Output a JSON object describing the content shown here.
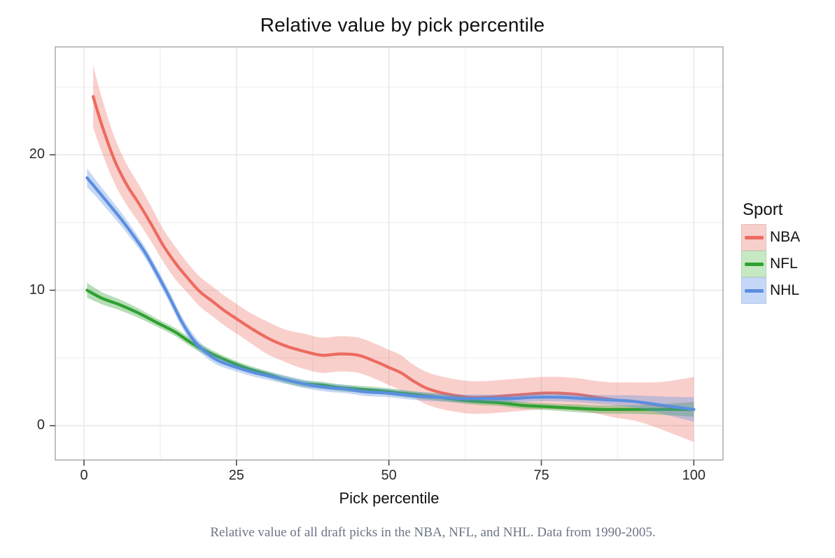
{
  "chart_data": {
    "type": "line",
    "title": "Relative value by pick percentile",
    "xlabel": "Pick percentile",
    "ylabel": "",
    "xlim": [
      -4.7,
      104.8
    ],
    "ylim": [
      -2.55,
      28.0
    ],
    "x_ticks": [
      0,
      25,
      50,
      75,
      100
    ],
    "y_ticks": [
      0,
      10,
      20
    ],
    "x_minor_gridlines": [
      12.5,
      37.5,
      62.5,
      87.5
    ],
    "y_minor_gridlines": [
      5,
      15,
      25
    ],
    "grid": "on",
    "panel_background": "#ffffff",
    "panel_border_color": "#9d9d9d",
    "major_grid_color": "#e6e6e6",
    "minor_grid_color": "#f2f2f2",
    "legend": {
      "title": "Sport",
      "position": "right",
      "entries": [
        {
          "label": "NBA",
          "line_color": "#ed6a5f",
          "fill_color": "#f7cfcb"
        },
        {
          "label": "NFL",
          "line_color": "#2fa132",
          "fill_color": "#c6e8c3"
        },
        {
          "label": "NHL",
          "line_color": "#5b8ee0",
          "fill_color": "#c5d8f7"
        }
      ]
    },
    "series": [
      {
        "name": "NBA",
        "color": "#ed6a5f",
        "band_opacity": 0.32,
        "x": [
          1.5,
          3,
          5,
          7,
          9,
          11,
          13,
          15,
          17,
          19,
          21,
          23,
          25,
          27,
          30,
          33,
          36,
          39,
          42,
          45,
          48,
          50,
          52,
          54,
          56,
          58,
          60,
          63,
          66,
          69,
          72,
          75,
          78,
          81,
          84,
          87,
          90,
          93,
          96,
          100
        ],
        "y": [
          24.3,
          22.1,
          19.6,
          17.8,
          16.4,
          14.9,
          13.3,
          12.0,
          10.9,
          9.9,
          9.2,
          8.5,
          7.9,
          7.3,
          6.5,
          5.9,
          5.5,
          5.2,
          5.3,
          5.2,
          4.7,
          4.3,
          3.9,
          3.3,
          2.8,
          2.5,
          2.3,
          2.1,
          2.1,
          2.2,
          2.3,
          2.4,
          2.4,
          2.3,
          2.1,
          1.9,
          1.8,
          1.6,
          1.4,
          1.2
        ],
        "band_half_width": [
          2.3,
          2.0,
          1.7,
          1.5,
          1.4,
          1.3,
          1.2,
          1.2,
          1.1,
          1.1,
          1.1,
          1.1,
          1.1,
          1.1,
          1.2,
          1.2,
          1.3,
          1.3,
          1.3,
          1.3,
          1.3,
          1.3,
          1.3,
          1.2,
          1.2,
          1.2,
          1.2,
          1.2,
          1.2,
          1.2,
          1.2,
          1.2,
          1.2,
          1.2,
          1.2,
          1.3,
          1.4,
          1.6,
          1.9,
          2.4
        ]
      },
      {
        "name": "NFL",
        "color": "#2fa132",
        "band_opacity": 0.35,
        "x": [
          0.5,
          3,
          6,
          9,
          12,
          15,
          18,
          21,
          24,
          27,
          30,
          33,
          36,
          39,
          42,
          45,
          48,
          52,
          56,
          60,
          64,
          68,
          72,
          76,
          80,
          85,
          90,
          95,
          100
        ],
        "y": [
          10.0,
          9.4,
          8.9,
          8.3,
          7.6,
          6.9,
          6.0,
          5.3,
          4.7,
          4.2,
          3.8,
          3.4,
          3.1,
          3.0,
          2.8,
          2.7,
          2.6,
          2.4,
          2.2,
          2.0,
          1.8,
          1.7,
          1.5,
          1.4,
          1.3,
          1.2,
          1.2,
          1.2,
          1.2
        ],
        "band_half_width": [
          0.55,
          0.45,
          0.4,
          0.35,
          0.3,
          0.3,
          0.3,
          0.28,
          0.25,
          0.25,
          0.25,
          0.25,
          0.25,
          0.25,
          0.25,
          0.25,
          0.25,
          0.25,
          0.25,
          0.25,
          0.25,
          0.25,
          0.25,
          0.25,
          0.28,
          0.3,
          0.32,
          0.4,
          0.55
        ]
      },
      {
        "name": "NHL",
        "color": "#5b8ee0",
        "band_opacity": 0.35,
        "x": [
          0.5,
          2,
          4,
          6,
          8,
          10,
          12,
          14,
          16,
          18,
          20,
          22,
          25,
          28,
          31,
          34,
          37,
          40,
          43,
          46,
          50,
          54,
          58,
          62,
          66,
          70,
          74,
          78,
          82,
          86,
          90,
          95,
          100
        ],
        "y": [
          18.3,
          17.5,
          16.4,
          15.3,
          14.1,
          12.8,
          11.2,
          9.5,
          7.7,
          6.3,
          5.4,
          4.8,
          4.3,
          3.9,
          3.6,
          3.3,
          3.0,
          2.8,
          2.7,
          2.5,
          2.4,
          2.2,
          2.1,
          2.0,
          2.0,
          2.0,
          2.1,
          2.1,
          2.0,
          1.9,
          1.8,
          1.5,
          1.2
        ],
        "band_half_width": [
          0.7,
          0.6,
          0.55,
          0.5,
          0.45,
          0.4,
          0.4,
          0.4,
          0.4,
          0.4,
          0.35,
          0.35,
          0.3,
          0.3,
          0.3,
          0.3,
          0.3,
          0.3,
          0.3,
          0.3,
          0.3,
          0.3,
          0.3,
          0.3,
          0.3,
          0.3,
          0.3,
          0.3,
          0.3,
          0.35,
          0.45,
          0.65,
          0.9
        ]
      }
    ]
  },
  "caption": {
    "text": "Relative value of all draft picks in the NBA, NFL, and NHL. Data from 1990-2005.",
    "color": "#6a7585"
  }
}
